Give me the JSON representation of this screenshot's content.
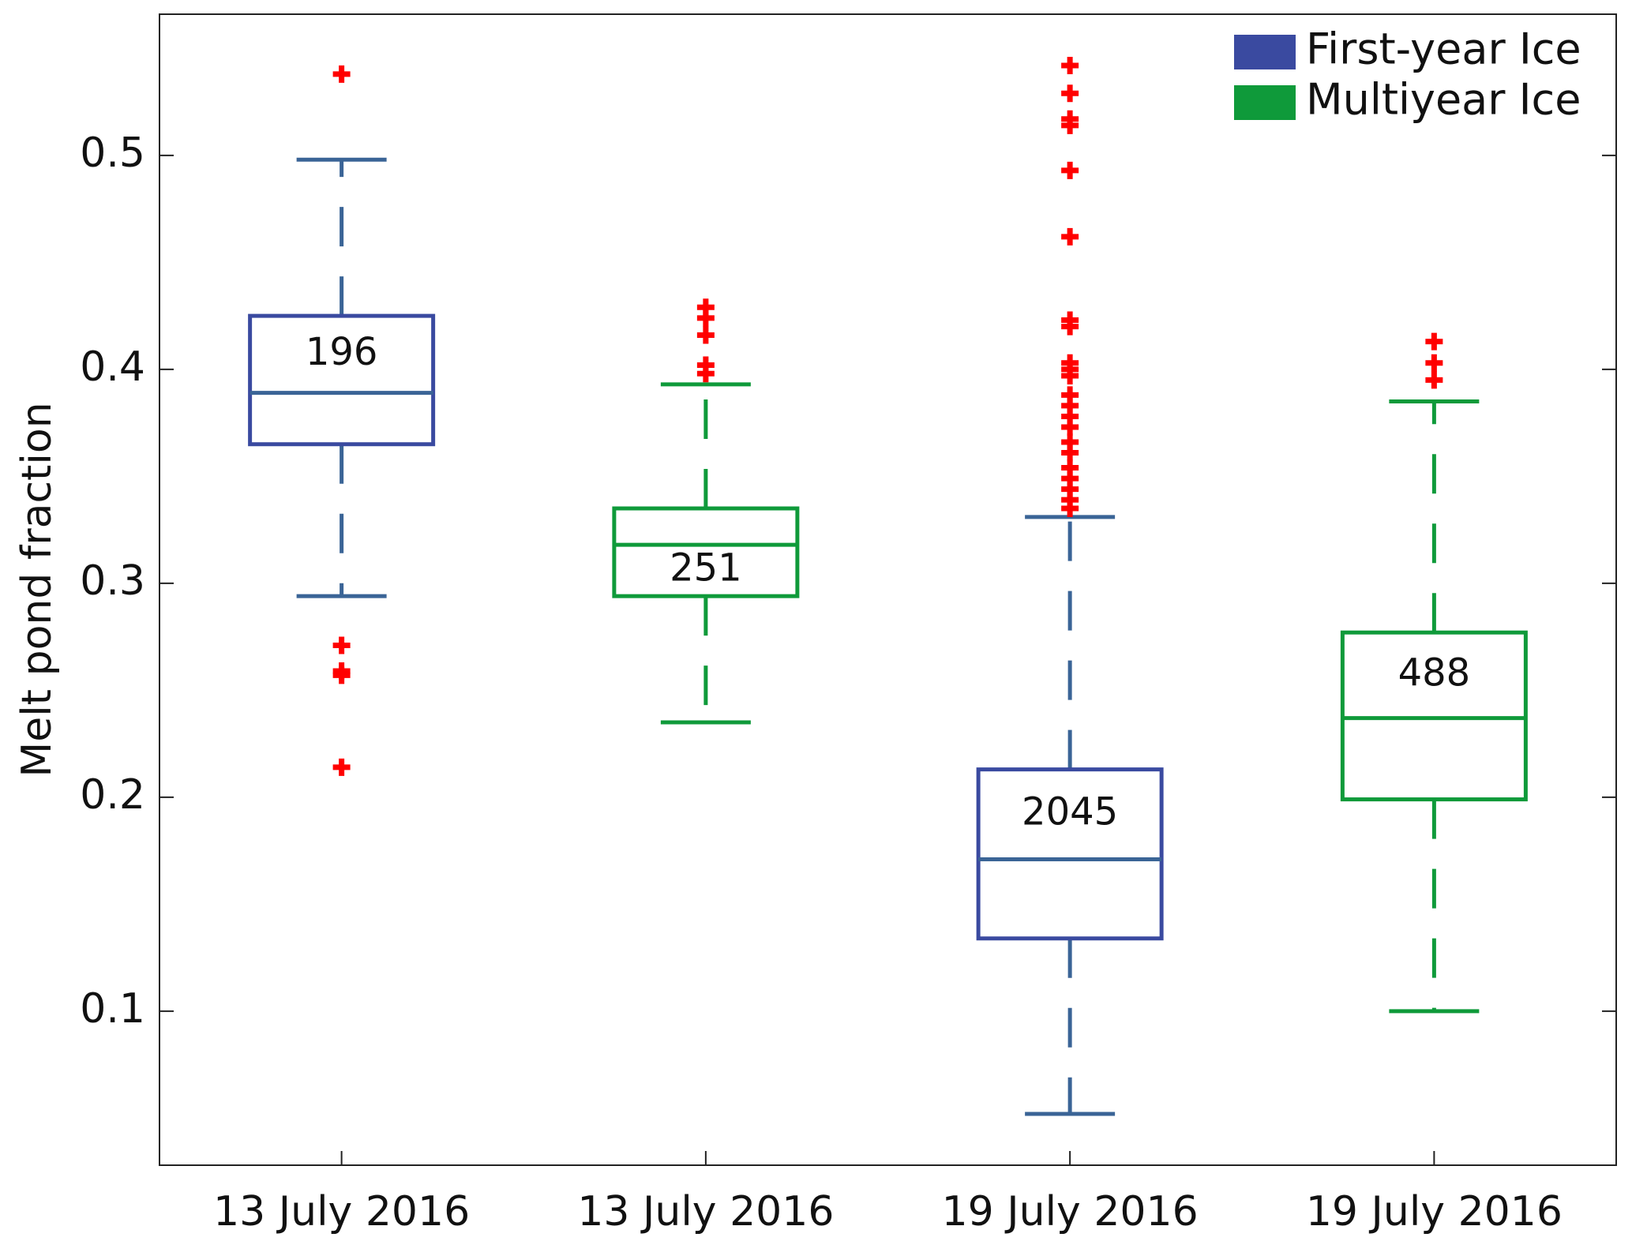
{
  "chart_data": {
    "type": "box",
    "ylabel": "Melt pond fraction",
    "categories": [
      "13 July 2016",
      "13 July 2016",
      "19 July 2016",
      "19 July 2016"
    ],
    "ylim": [
      0.028,
      0.566
    ],
    "yticks": [
      0.1,
      0.2,
      0.3,
      0.4,
      0.5
    ],
    "legend": "upper right",
    "outlier_color": "#ff0000",
    "series": [
      {
        "name": "First-year Ice",
        "color": "#3a4aa0",
        "whisker_color": "#3a6496",
        "values": [
          {
            "whisker_low": 0.294,
            "q1": 0.365,
            "median": 0.389,
            "q3": 0.425,
            "whisker_high": 0.498,
            "n": 196,
            "outliers": [
              0.538,
              0.271,
              0.259,
              0.257,
              0.214
            ]
          },
          null,
          {
            "whisker_low": 0.052,
            "q1": 0.134,
            "median": 0.171,
            "q3": 0.213,
            "whisker_high": 0.331,
            "n": 2045,
            "outliers": [
              0.542,
              0.529,
              0.517,
              0.514,
              0.493,
              0.462,
              0.423,
              0.42,
              0.403,
              0.4,
              0.397,
              0.388,
              0.383,
              0.378,
              0.373,
              0.366,
              0.361,
              0.354,
              0.349,
              0.344,
              0.339,
              0.335
            ]
          },
          null
        ]
      },
      {
        "name": "Multiyear Ice",
        "color": "#0f9a3a",
        "whisker_color": "#0f9a3a",
        "values": [
          null,
          {
            "whisker_low": 0.235,
            "q1": 0.294,
            "median": 0.318,
            "q3": 0.335,
            "whisker_high": 0.393,
            "n": 251,
            "outliers": [
              0.429,
              0.424,
              0.416,
              0.402,
              0.398
            ]
          },
          null,
          {
            "whisker_low": 0.1,
            "q1": 0.199,
            "median": 0.237,
            "q3": 0.277,
            "whisker_high": 0.385,
            "n": 488,
            "outliers": [
              0.413,
              0.403,
              0.395
            ]
          }
        ]
      }
    ]
  }
}
